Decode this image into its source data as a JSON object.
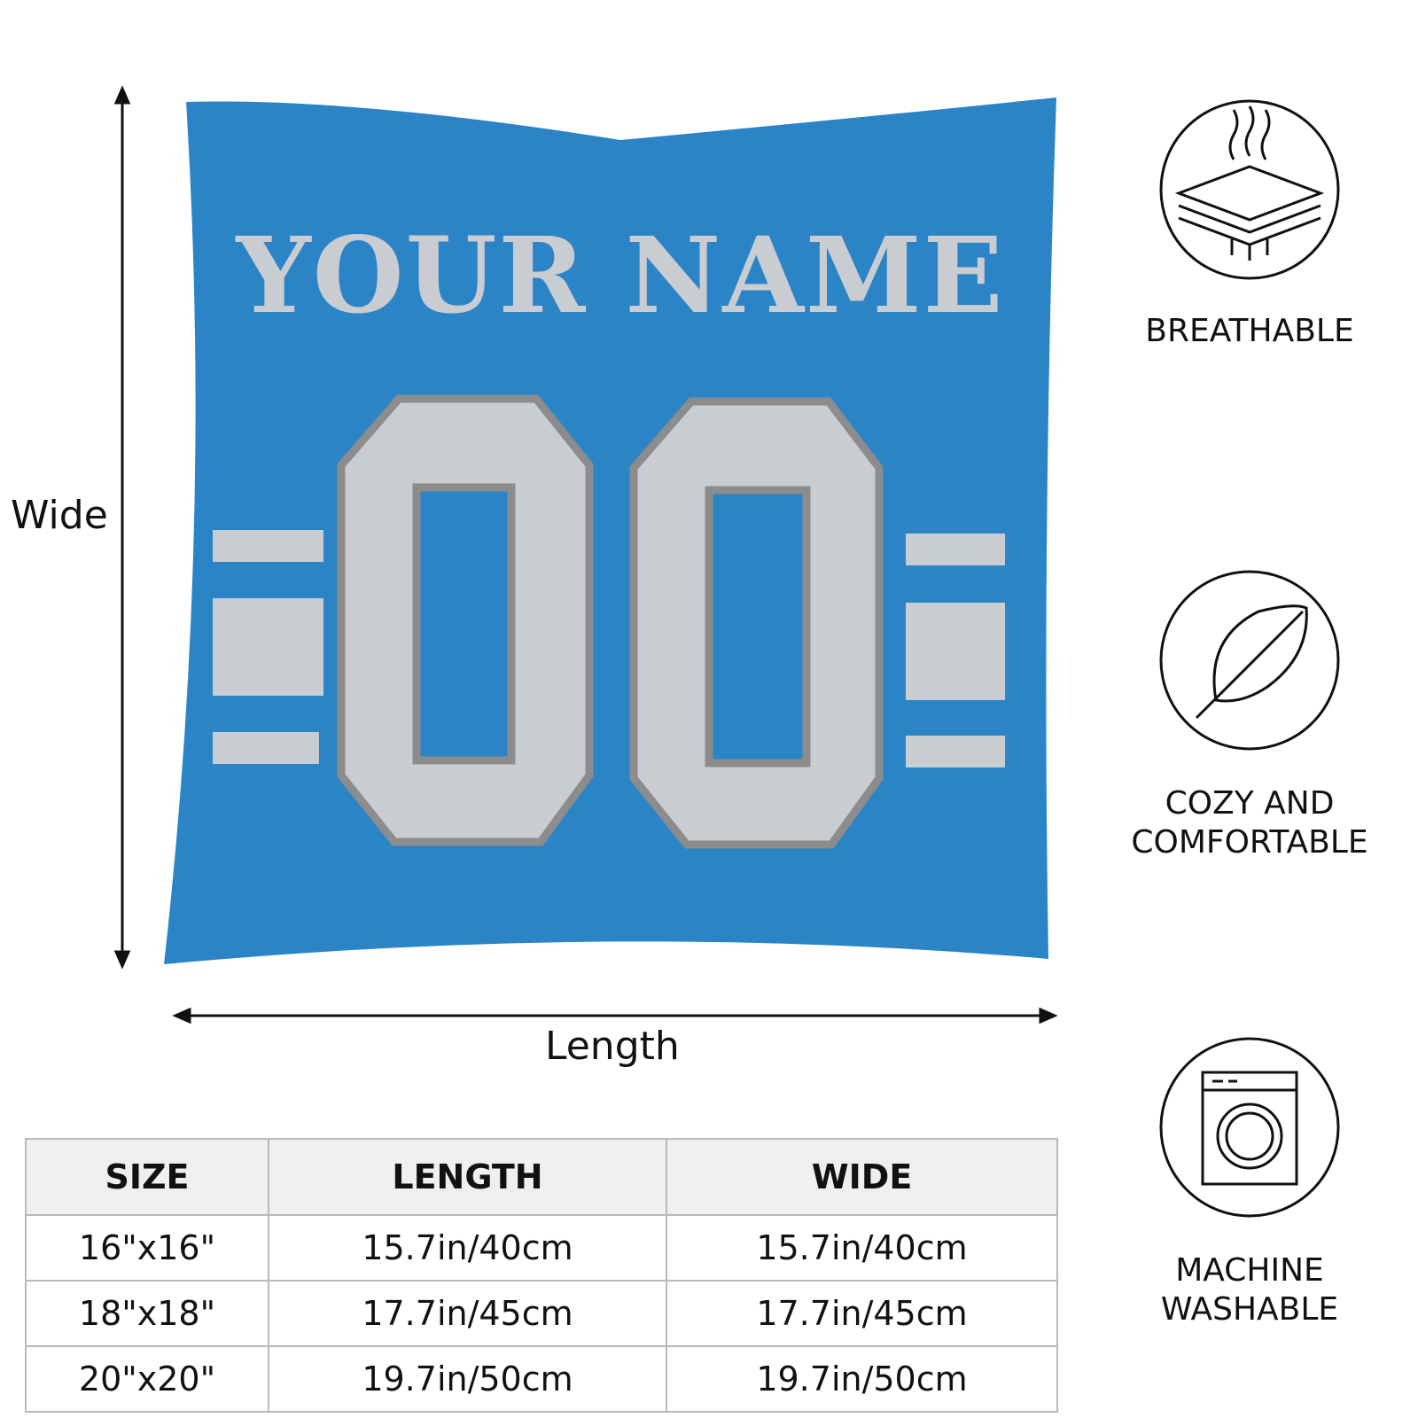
{
  "pillow": {
    "name_text": "YOUR NAME",
    "number_text": "00",
    "colors": {
      "base": "#2b84c6",
      "accent": "#c9ccd1",
      "outline": "#8c8c8c"
    }
  },
  "dimensions": {
    "wide_label": "Wide",
    "length_label": "Length"
  },
  "features": [
    {
      "icon": "breathable-layers-icon",
      "label": "BREATHABLE"
    },
    {
      "icon": "feather-icon",
      "label": "COZY AND COMFORTABLE"
    },
    {
      "icon": "washing-machine-icon",
      "label": "MACHINE WASHABLE"
    }
  ],
  "size_table": {
    "headers": [
      "SIZE",
      "LENGTH",
      "WIDE"
    ],
    "rows": [
      [
        "16\"x16\"",
        "15.7in/40cm",
        "15.7in/40cm"
      ],
      [
        "18\"x18\"",
        "17.7in/45cm",
        "17.7in/45cm"
      ],
      [
        "20\"x20\"",
        "19.7in/50cm",
        "19.7in/50cm"
      ]
    ]
  }
}
